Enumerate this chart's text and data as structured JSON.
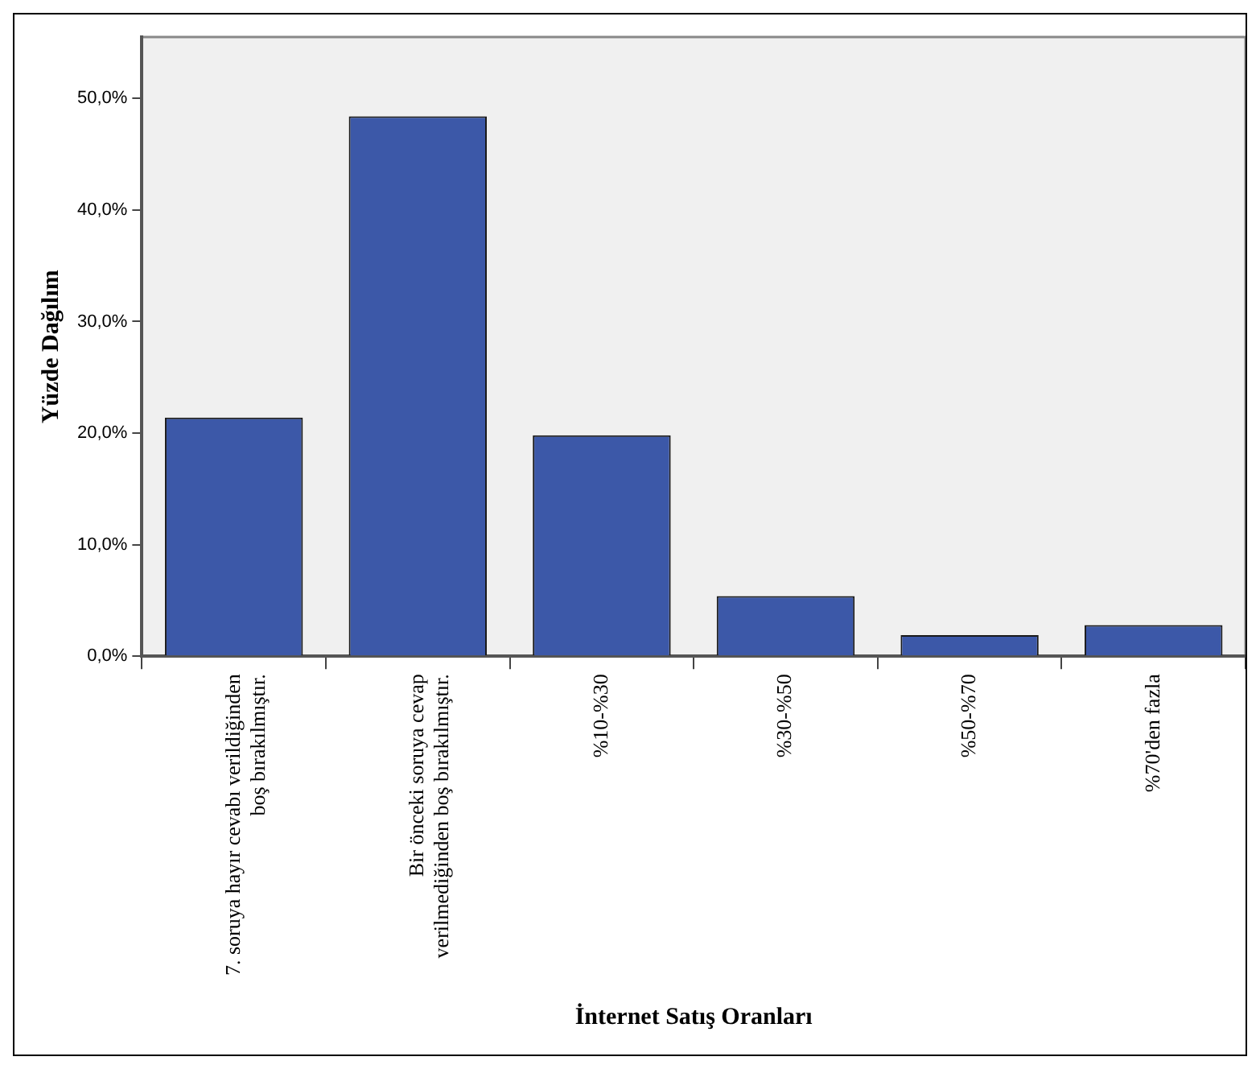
{
  "chart_data": {
    "type": "bar",
    "xlabel": "İnternet Satış Oranları",
    "ylabel": "Yüzde Dağılım",
    "categories": [
      "7. soruya hayır cevabı verildiğinden boş bırakılmıştır.",
      "Bir önceki soruya cevap verilmediğinden boş bırakılmıştır.",
      "%10-%30",
      "%30-%50",
      "%50-%70",
      "%70'den fazla"
    ],
    "values": [
      21.4,
      48.4,
      19.8,
      5.4,
      1.9,
      2.8
    ],
    "color": "#3c58a8",
    "ylim": [
      0,
      55.5
    ],
    "yticks": [
      {
        "value": 0,
        "label": "0,0%"
      },
      {
        "value": 10,
        "label": "10,0%"
      },
      {
        "value": 20,
        "label": "20,0%"
      },
      {
        "value": 30,
        "label": "30,0%"
      },
      {
        "value": 40,
        "label": "40,0%"
      },
      {
        "value": 50,
        "label": "50,0%"
      }
    ]
  }
}
